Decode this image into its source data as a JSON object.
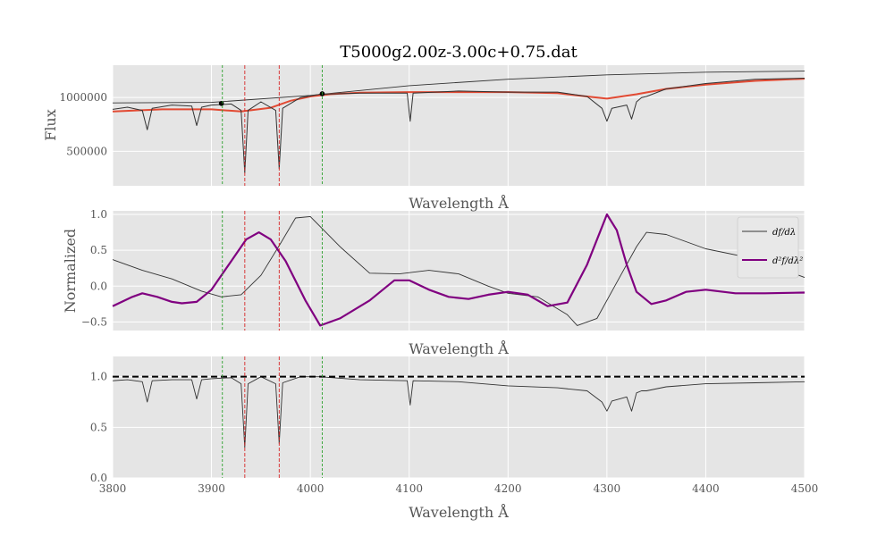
{
  "chart_data": {
    "type": "line",
    "title": "T5000g2.00z-3.00c+0.75.dat",
    "xlim": [
      3800,
      4500
    ],
    "x_ticks": [
      3800,
      3900,
      4000,
      4100,
      4200,
      4300,
      4400,
      4500
    ],
    "xlabel": "Wavelength Å",
    "colors": {
      "spectrum": "#333333",
      "smooth": "#e24a33",
      "second_derivative": "#800080",
      "red_lines": "#d62728",
      "green_lines": "#2ca02c",
      "reference": "#000000"
    },
    "vlines": {
      "red": [
        3933.7,
        3968.5
      ],
      "green": [
        3911,
        4012
      ]
    },
    "panels": [
      {
        "ylabel": "Flux",
        "ylim": [
          180000,
          1300000
        ],
        "y_ticks": [
          500000,
          1000000
        ],
        "y_tick_labels": [
          "500000",
          "1000000"
        ],
        "xlabel": "Wavelength Å",
        "series": [
          {
            "key": "continuum",
            "x": [
              3800,
              3900,
              4000,
              4100,
              4200,
              4300,
              4400,
              4500
            ],
            "y": [
              950000,
              955000,
              1020000,
              1110000,
              1170000,
              1210000,
              1235000,
              1245000
            ]
          },
          {
            "key": "smooth",
            "x": [
              3800,
              3850,
              3900,
              3930,
              3960,
              3980,
              4000,
              4020,
              4050,
              4100,
              4150,
              4200,
              4250,
              4280,
              4300,
              4330,
              4360,
              4400,
              4450,
              4500
            ],
            "y": [
              870000,
              890000,
              890000,
              870000,
              905000,
              970000,
              1010000,
              1030000,
              1045000,
              1050000,
              1050000,
              1050000,
              1040000,
              1010000,
              990000,
              1030000,
              1080000,
              1120000,
              1155000,
              1175000
            ]
          },
          {
            "key": "spectrum",
            "x": [
              3800,
              3815,
              3830,
              3835,
              3840,
              3860,
              3880,
              3885,
              3890,
              3900,
              3920,
              3930,
              3933.7,
              3937,
              3950,
              3965,
              3968.5,
              3972,
              3990,
              4010,
              4050,
              4098,
              4101,
              4104,
              4150,
              4200,
              4250,
              4280,
              4295,
              4300,
              4305,
              4320,
              4325,
              4330,
              4335,
              4340,
              4360,
              4400,
              4450,
              4500
            ],
            "y": [
              890000,
              910000,
              880000,
              700000,
              900000,
              930000,
              920000,
              740000,
              910000,
              930000,
              940000,
              880000,
              300000,
              880000,
              960000,
              880000,
              340000,
              900000,
              1000000,
              1030000,
              1040000,
              1040000,
              780000,
              1040000,
              1060000,
              1050000,
              1050000,
              1010000,
              900000,
              780000,
              900000,
              930000,
              800000,
              960000,
              1000000,
              1010000,
              1080000,
              1130000,
              1170000,
              1180000
            ]
          }
        ],
        "markers": {
          "x": [
            3910,
            4012
          ],
          "y": [
            945000,
            1035000
          ]
        }
      },
      {
        "ylabel": "Normalized",
        "ylim": [
          -0.62,
          1.05
        ],
        "y_ticks": [
          -0.5,
          0.0,
          0.5,
          1.0
        ],
        "y_tick_labels": [
          "−0.5",
          "0.0",
          "0.5",
          "1.0"
        ],
        "xlabel": "Wavelength Å",
        "legend": {
          "placement": "top-right",
          "entries": [
            "df/dλ",
            "d²f/dλ²"
          ]
        },
        "series": [
          {
            "key": "first_derivative",
            "x": [
              3800,
              3830,
              3860,
              3890,
              3910,
              3930,
              3950,
              3970,
              3985,
              4000,
              4030,
              4060,
              4090,
              4120,
              4150,
              4180,
              4200,
              4230,
              4260,
              4270,
              4290,
              4310,
              4330,
              4340,
              4360,
              4400,
              4450,
              4500
            ],
            "y": [
              0.37,
              0.22,
              0.1,
              -0.07,
              -0.15,
              -0.12,
              0.15,
              0.6,
              0.95,
              0.97,
              0.55,
              0.18,
              0.17,
              0.22,
              0.17,
              0.0,
              -0.1,
              -0.15,
              -0.4,
              -0.55,
              -0.45,
              0.05,
              0.55,
              0.75,
              0.72,
              0.52,
              0.38,
              0.12
            ]
          },
          {
            "key": "second_derivative",
            "x": [
              3800,
              3820,
              3830,
              3845,
              3860,
              3870,
              3885,
              3900,
              3920,
              3935,
              3948,
              3960,
              3975,
              3995,
              4010,
              4030,
              4060,
              4085,
              4100,
              4120,
              4140,
              4160,
              4180,
              4200,
              4220,
              4240,
              4260,
              4280,
              4300,
              4310,
              4320,
              4330,
              4345,
              4360,
              4380,
              4400,
              4430,
              4460,
              4500
            ],
            "y": [
              -0.28,
              -0.15,
              -0.1,
              -0.15,
              -0.22,
              -0.24,
              -0.22,
              -0.05,
              0.35,
              0.65,
              0.75,
              0.65,
              0.35,
              -0.2,
              -0.55,
              -0.45,
              -0.2,
              0.08,
              0.08,
              -0.05,
              -0.15,
              -0.18,
              -0.12,
              -0.08,
              -0.12,
              -0.28,
              -0.23,
              0.3,
              1.0,
              0.78,
              0.3,
              -0.08,
              -0.25,
              -0.2,
              -0.08,
              -0.05,
              -0.1,
              -0.1,
              -0.09
            ]
          }
        ]
      },
      {
        "ylabel": "",
        "ylim": [
          0.0,
          1.2
        ],
        "y_ticks": [
          0.0,
          0.5,
          1.0
        ],
        "y_tick_labels": [
          "0.0",
          "0.5",
          "1.0"
        ],
        "xlabel": "Wavelength Å",
        "reference_line": 1.0,
        "series": [
          {
            "key": "normalized_spectrum",
            "x": [
              3800,
              3815,
              3830,
              3835,
              3840,
              3860,
              3880,
              3885,
              3890,
              3900,
              3920,
              3930,
              3933.7,
              3937,
              3950,
              3965,
              3968.5,
              3972,
              3990,
              4010,
              4050,
              4098,
              4101,
              4104,
              4150,
              4200,
              4250,
              4280,
              4295,
              4300,
              4305,
              4320,
              4325,
              4330,
              4335,
              4340,
              4360,
              4400,
              4450,
              4500
            ],
            "y": [
              0.96,
              0.97,
              0.95,
              0.75,
              0.96,
              0.97,
              0.97,
              0.78,
              0.97,
              0.98,
              0.99,
              0.93,
              0.3,
              0.93,
              1.0,
              0.93,
              0.34,
              0.94,
              1.0,
              1.0,
              0.97,
              0.96,
              0.72,
              0.96,
              0.95,
              0.91,
              0.89,
              0.86,
              0.75,
              0.66,
              0.76,
              0.8,
              0.66,
              0.84,
              0.86,
              0.86,
              0.9,
              0.93,
              0.94,
              0.95
            ]
          }
        ]
      }
    ]
  }
}
